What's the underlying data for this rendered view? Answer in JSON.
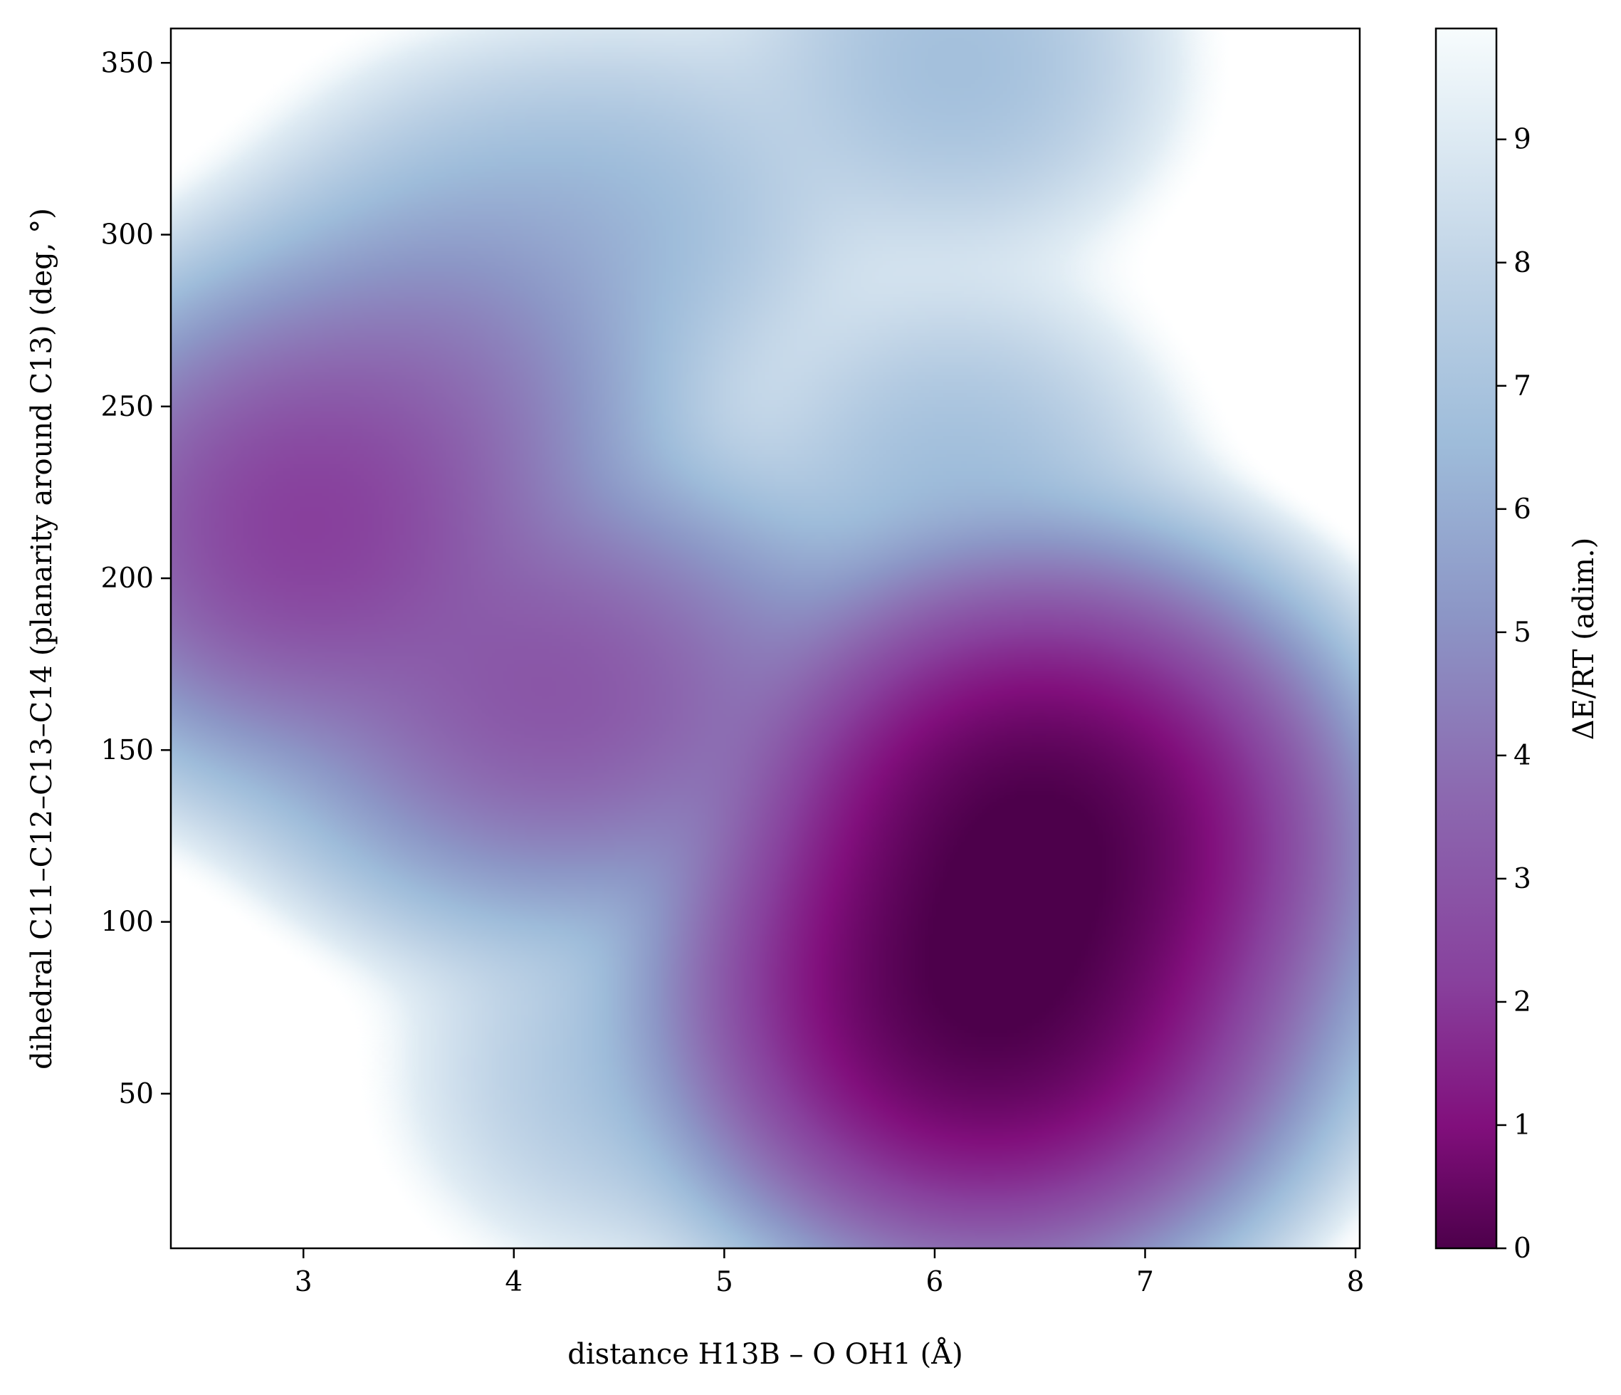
{
  "chart_data": {
    "type": "heatmap",
    "title": "",
    "xlabel": "distance H13B – O OH1 (Å)",
    "ylabel": "dihedral C11–C12–C13–C14 (planarity around C13) (deg, °)",
    "xlim": [
      2.37,
      8.02
    ],
    "ylim": [
      5,
      360
    ],
    "x_ticks": [
      "3",
      "4",
      "5",
      "6",
      "7",
      "8"
    ],
    "y_ticks": [
      "50",
      "100",
      "150",
      "200",
      "250",
      "300",
      "350"
    ],
    "colorbar": {
      "label": "ΔE/RT (adim.)",
      "range": [
        0,
        9.9
      ],
      "ticks": [
        "0",
        "1",
        "2",
        "3",
        "4",
        "5",
        "6",
        "7",
        "8",
        "9"
      ],
      "colormap": "BuPu_r",
      "colors": [
        "#4d004b",
        "#810f7c",
        "#88419d",
        "#8c6bb1",
        "#8c96c6",
        "#9ebcda",
        "#bfd3e6",
        "#e0ecf4",
        "#f7fcfd"
      ]
    },
    "basins": [
      {
        "x": 6.5,
        "y": 125,
        "value": 0.0
      },
      {
        "x": 6.25,
        "y": 78,
        "value": 0.05
      },
      {
        "x": 3.0,
        "y": 215,
        "value": 2.5
      },
      {
        "x": 4.3,
        "y": 165,
        "value": 3.6
      },
      {
        "x": 3.9,
        "y": 170,
        "value": 4.0
      },
      {
        "x": 3.6,
        "y": 250,
        "value": 4.2
      },
      {
        "x": 5.0,
        "y": 165,
        "value": 5.0
      },
      {
        "x": 3.9,
        "y": 295,
        "value": 6.3
      },
      {
        "x": 4.6,
        "y": 305,
        "value": 6.5
      },
      {
        "x": 6.1,
        "y": 350,
        "value": 6.4
      },
      {
        "x": 6.1,
        "y": 230,
        "value": 6.4
      },
      {
        "x": 4.5,
        "y": 55,
        "value": 6.8
      },
      {
        "x": 6.3,
        "y": 15,
        "value": 6.5
      },
      {
        "x": 7.85,
        "y": 95,
        "value": 6.5
      }
    ]
  }
}
